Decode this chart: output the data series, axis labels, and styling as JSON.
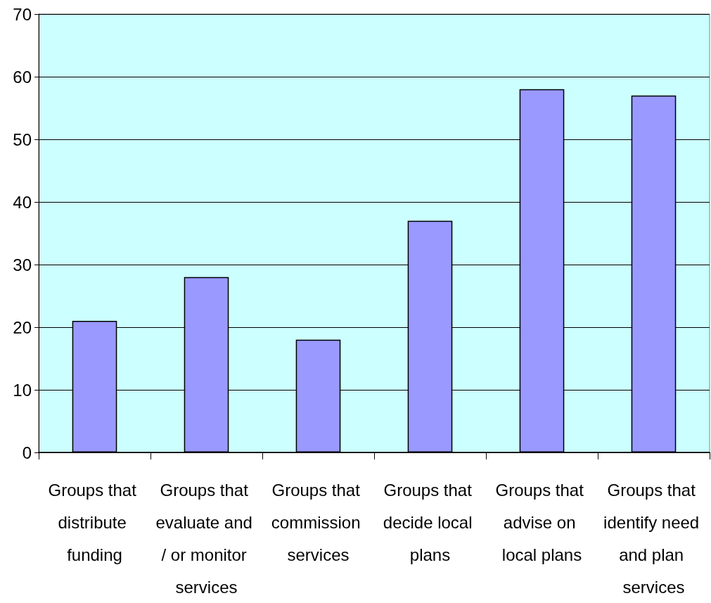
{
  "chart_data": {
    "type": "bar",
    "categories": [
      "Groups that distribute funding",
      "Groups that evaluate and / or monitor services",
      "Groups that commission services",
      "Groups that decide local plans",
      "Groups that advise on local plans",
      "Groups that identify need and plan services"
    ],
    "values": [
      21,
      28,
      18,
      37,
      58,
      57
    ],
    "color": "#9999ff",
    "ylim": [
      0,
      70
    ],
    "yticks": [
      0,
      10,
      20,
      30,
      40,
      50,
      60,
      70
    ],
    "grid": "y"
  }
}
